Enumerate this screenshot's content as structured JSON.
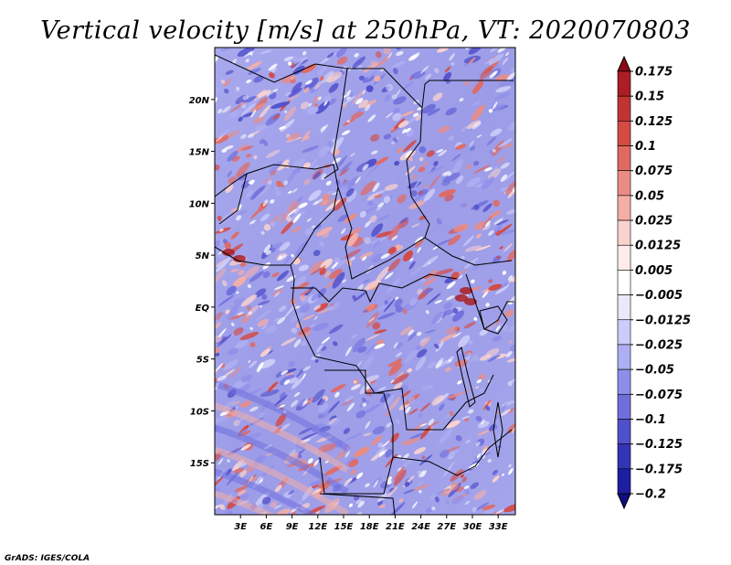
{
  "chart_data": {
    "type": "heatmap",
    "title": "Vertical velocity [m/s] at 250hPa, VT: 2020070803",
    "field": "Vertical velocity",
    "units": "m/s",
    "level": "250hPa",
    "valid_time": "2020070803",
    "x_ticks": [
      "3E",
      "6E",
      "9E",
      "12E",
      "15E",
      "18E",
      "21E",
      "24E",
      "27E",
      "30E",
      "33E"
    ],
    "x_tick_values": [
      3,
      6,
      9,
      12,
      15,
      18,
      21,
      24,
      27,
      30,
      33
    ],
    "y_ticks": [
      "20N",
      "15N",
      "10N",
      "5N",
      "EQ",
      "5S",
      "10S",
      "15S"
    ],
    "y_tick_values": [
      20,
      15,
      10,
      5,
      0,
      -5,
      -10,
      -15
    ],
    "lon_range": [
      0,
      35
    ],
    "lat_range": [
      -20,
      25
    ],
    "colorbar": {
      "labels": [
        "0.175",
        "0.15",
        "0.125",
        "0.1",
        "0.075",
        "0.05",
        "0.025",
        "0.0125",
        "0.005",
        "−0.005",
        "−0.0125",
        "−0.025",
        "−0.05",
        "−0.075",
        "−0.1",
        "−0.125",
        "−0.175",
        "−0.2"
      ],
      "colors": [
        "#8b0a14",
        "#aa1e24",
        "#c23432",
        "#d44a44",
        "#e06a62",
        "#ea8c84",
        "#f3aea8",
        "#f9d2ce",
        "#fdeceb",
        "#ffffff",
        "#e9e9fc",
        "#ccccf8",
        "#aeaef2",
        "#8e8eea",
        "#6f6fdc",
        "#5050cb",
        "#3434b6",
        "#1e1ea0",
        "#0e0e80"
      ]
    }
  },
  "credit": "GrADS: IGES/COLA"
}
